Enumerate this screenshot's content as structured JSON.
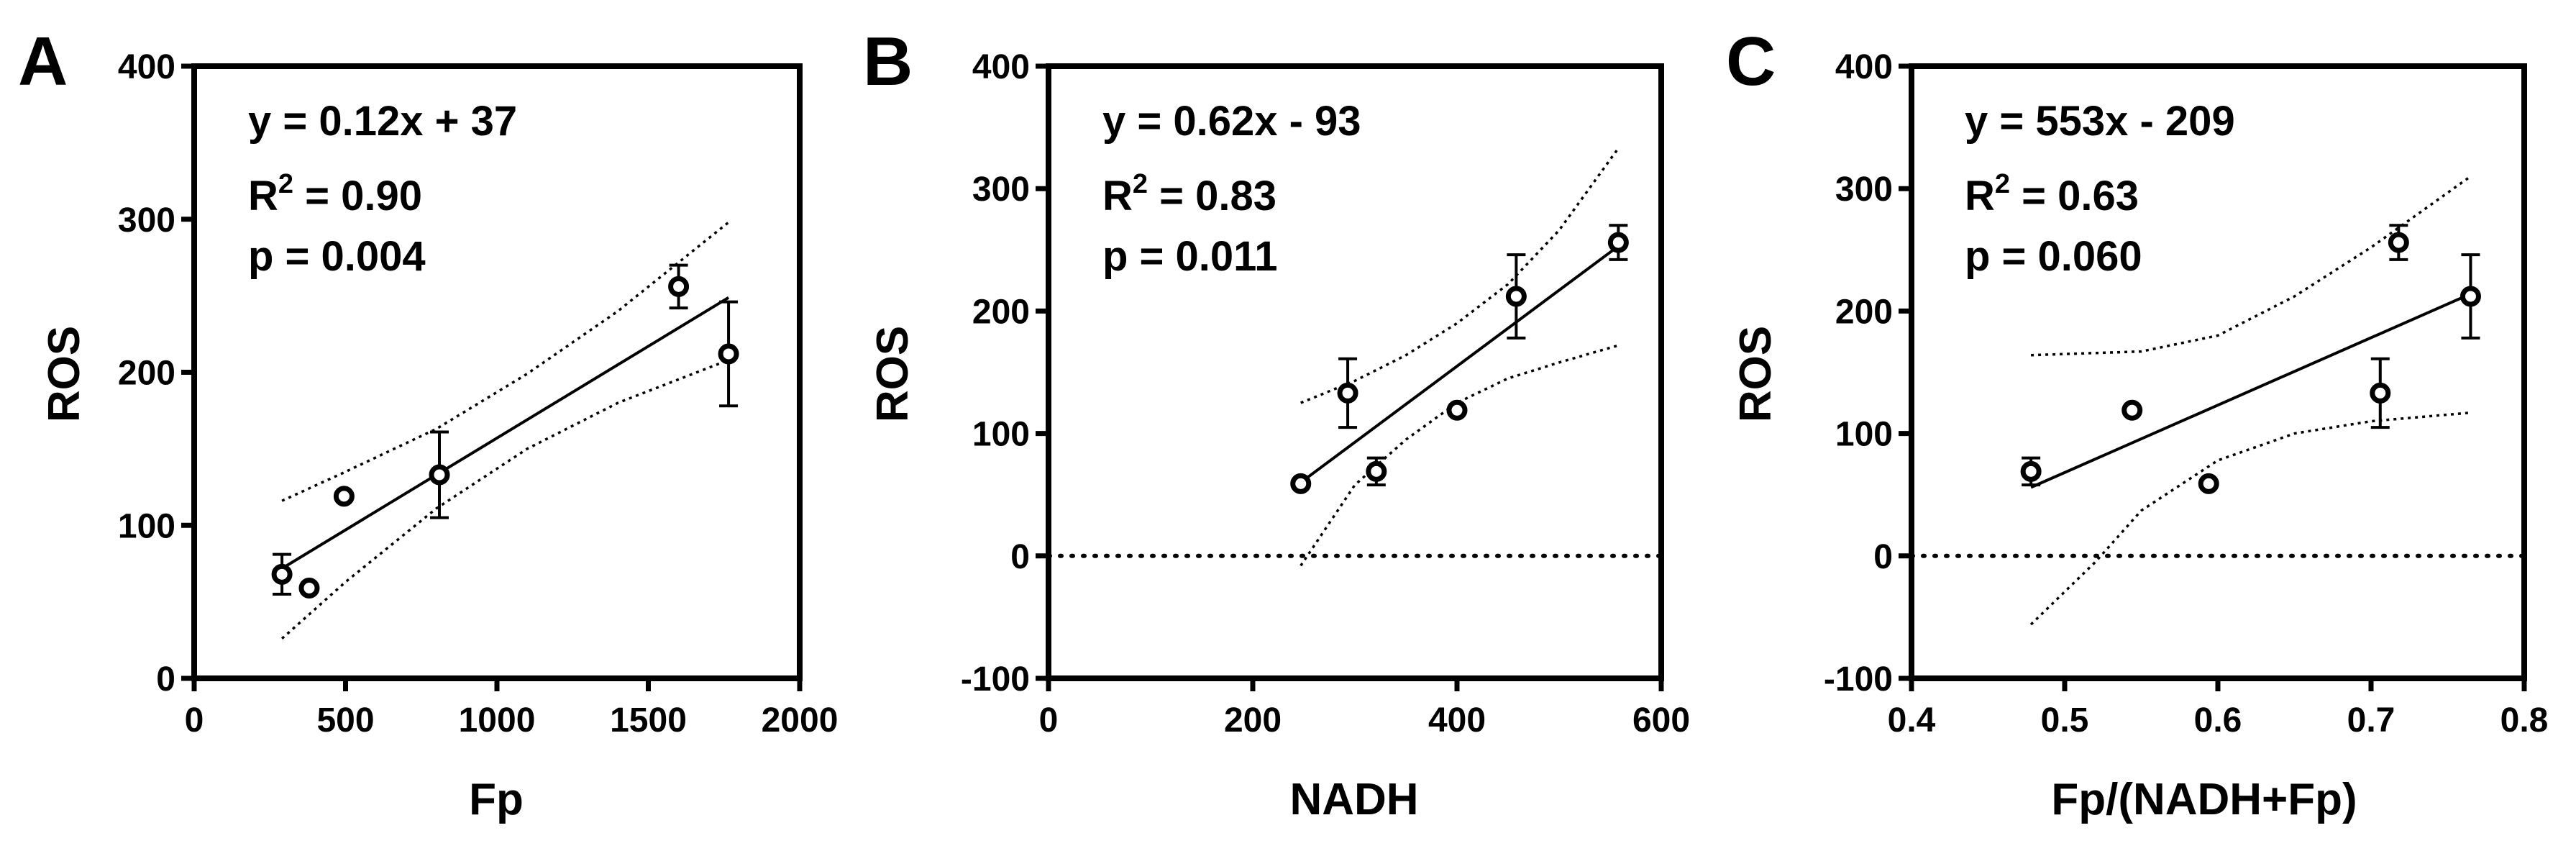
{
  "chart_data": [
    {
      "type": "scatter",
      "panel": "A",
      "xlabel": "Fp",
      "ylabel": "ROS",
      "xlim": [
        0,
        2000
      ],
      "ylim": [
        0,
        400
      ],
      "xticks": [
        "0",
        "500",
        "1000",
        "1500",
        "2000"
      ],
      "xtick_values": [
        0,
        500,
        1000,
        1500,
        2000
      ],
      "yticks": [
        "0",
        "100",
        "200",
        "300",
        "400"
      ],
      "ytick_values": [
        0,
        100,
        200,
        300,
        400
      ],
      "zero_line": false,
      "stats": {
        "equation": "y = 0.12x + 37",
        "r2_prefix": "R",
        "r2_sup": "2",
        "r2_value": " = 0.90",
        "p": "p = 0.004"
      },
      "points": [
        {
          "x": 290,
          "y": 68,
          "err": 13
        },
        {
          "x": 380,
          "y": 59,
          "err": 0
        },
        {
          "x": 495,
          "y": 119,
          "err": 0
        },
        {
          "x": 810,
          "y": 133,
          "err": 28
        },
        {
          "x": 1600,
          "y": 256,
          "err": 14
        },
        {
          "x": 1765,
          "y": 212,
          "err": 34
        }
      ],
      "fit": {
        "x": [
          290,
          1765
        ],
        "y": [
          71.8,
          248.8
        ]
      },
      "ci_upper": {
        "x": [
          290,
          500,
          800,
          1100,
          1400,
          1765
        ],
        "y": [
          116,
          135,
          163,
          199,
          240,
          298
        ]
      },
      "ci_lower": {
        "x": [
          290,
          500,
          800,
          1100,
          1400,
          1765
        ],
        "y": [
          26,
          63,
          111,
          150,
          180,
          208
        ]
      }
    },
    {
      "type": "scatter",
      "panel": "B",
      "xlabel": "NADH",
      "ylabel": "ROS",
      "xlim": [
        0,
        600
      ],
      "ylim": [
        -100,
        400
      ],
      "xticks": [
        "0",
        "200",
        "400",
        "600"
      ],
      "xtick_values": [
        0,
        200,
        400,
        600
      ],
      "yticks": [
        "-100",
        "0",
        "100",
        "200",
        "300",
        "400"
      ],
      "ytick_values": [
        -100,
        0,
        100,
        200,
        300,
        400
      ],
      "zero_line": true,
      "stats": {
        "equation": "y = 0.62x - 93",
        "r2_prefix": "R",
        "r2_sup": "2",
        "r2_value": " = 0.83",
        "p": "p = 0.011"
      },
      "points": [
        {
          "x": 247,
          "y": 59,
          "err": 0
        },
        {
          "x": 293,
          "y": 133,
          "err": 28
        },
        {
          "x": 321,
          "y": 69,
          "err": 11
        },
        {
          "x": 400,
          "y": 119,
          "err": 0
        },
        {
          "x": 458,
          "y": 212,
          "err": 34
        },
        {
          "x": 558,
          "y": 256,
          "err": 14
        }
      ],
      "fit": {
        "x": [
          247,
          558
        ],
        "y": [
          60,
          253
        ]
      },
      "ci_upper": {
        "x": [
          247,
          300,
          350,
          400,
          450,
          500,
          558
        ],
        "y": [
          125,
          143,
          164,
          190,
          222,
          266,
          333
        ]
      },
      "ci_lower": {
        "x": [
          247,
          300,
          350,
          400,
          450,
          500,
          558
        ],
        "y": [
          -8,
          58,
          95,
          125,
          145,
          158,
          172
        ]
      }
    },
    {
      "type": "scatter",
      "panel": "C",
      "xlabel": "Fp/(NADH+Fp)",
      "ylabel": "ROS",
      "xlim": [
        0.4,
        0.8
      ],
      "ylim": [
        -100,
        400
      ],
      "xticks": [
        "0.4",
        "0.5",
        "0.6",
        "0.7",
        "0.8"
      ],
      "xtick_values": [
        0.4,
        0.5,
        0.6,
        0.7,
        0.8
      ],
      "yticks": [
        "-100",
        "0",
        "100",
        "200",
        "300",
        "400"
      ],
      "ytick_values": [
        -100,
        0,
        100,
        200,
        300,
        400
      ],
      "zero_line": true,
      "stats": {
        "equation": "y = 553x - 209",
        "r2_prefix": "R",
        "r2_sup": "2",
        "r2_value": " = 0.63",
        "p": "p = 0.060"
      },
      "points": [
        {
          "x": 0.478,
          "y": 69,
          "err": 11
        },
        {
          "x": 0.544,
          "y": 119,
          "err": 0
        },
        {
          "x": 0.594,
          "y": 59,
          "err": 0
        },
        {
          "x": 0.706,
          "y": 133,
          "err": 28
        },
        {
          "x": 0.718,
          "y": 256,
          "err": 14
        },
        {
          "x": 0.765,
          "y": 212,
          "err": 34
        }
      ],
      "fit": {
        "x": [
          0.478,
          0.765
        ],
        "y": [
          56,
          214
        ]
      },
      "ci_upper": {
        "x": [
          0.478,
          0.55,
          0.6,
          0.65,
          0.7,
          0.765
        ],
        "y": [
          164,
          167,
          180,
          212,
          252,
          310
        ]
      },
      "ci_lower": {
        "x": [
          0.478,
          0.52,
          0.55,
          0.6,
          0.65,
          0.7,
          0.765
        ],
        "y": [
          -56,
          -5,
          37,
          78,
          100,
          110,
          117
        ]
      }
    }
  ]
}
